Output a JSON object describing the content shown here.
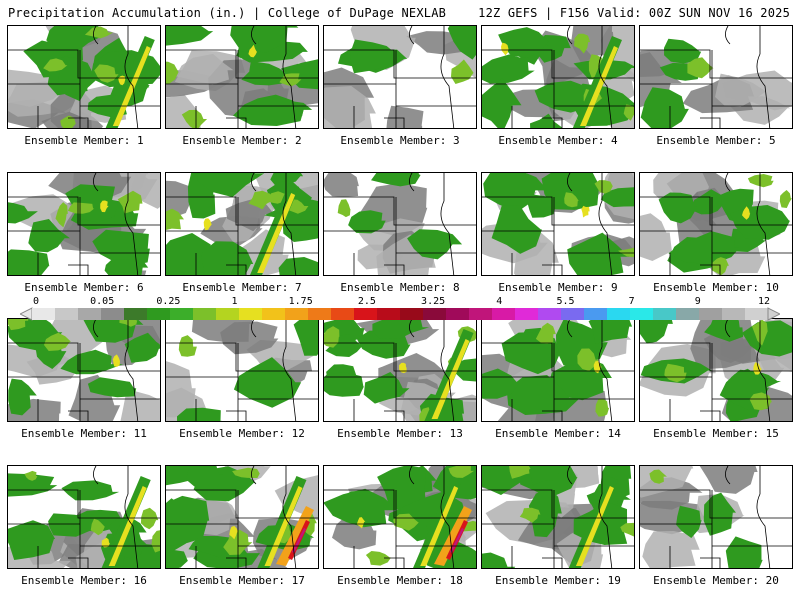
{
  "header": {
    "title_left": "Precipitation Accumulation (in.) | College of DuPage NEXLAB",
    "title_right": "12Z GEFS | F156 Valid: 00Z SUN NOV 16 2025"
  },
  "panel_label_prefix": "Ensemble Member: ",
  "colors": {
    "green": "#2f9a1f",
    "lightgreen": "#7cc02a",
    "yellow": "#e6e020",
    "orange": "#f2a21a",
    "red": "#d8141a",
    "magenta": "#c0157a",
    "gray": "#b0b0b0",
    "darkgray": "#7d7d7d",
    "border": "#000000"
  },
  "colorbar": {
    "labels": [
      "0",
      "0.05",
      "0.25",
      "1",
      "1.75",
      "2.5",
      "3.25",
      "4",
      "5.5",
      "7",
      "9",
      "12"
    ],
    "swatches": [
      "#e8e8e8",
      "#c8c8c8",
      "#a8a8a8",
      "#8c8c8c",
      "#3c7a2a",
      "#2f9a1f",
      "#3cae2a",
      "#7cc02a",
      "#b4d420",
      "#e6e020",
      "#f2c21a",
      "#f2a21a",
      "#ee7a18",
      "#e84a16",
      "#d8141a",
      "#b80c1a",
      "#980a1a",
      "#8a0a3a",
      "#a00a5a",
      "#c0157a",
      "#d81aa6",
      "#e02ad8",
      "#b04af0",
      "#7a6af0",
      "#4a9af0",
      "#2ad8f0",
      "#2ae8e8",
      "#48c8c8",
      "#88a8a8",
      "#a0a0a0",
      "#b8b8b8",
      "#d0d0d0"
    ]
  },
  "members": [
    {
      "id": "1",
      "profile": "wet"
    },
    {
      "id": "2",
      "profile": "mid"
    },
    {
      "id": "3",
      "profile": "dry"
    },
    {
      "id": "4",
      "profile": "band"
    },
    {
      "id": "5",
      "profile": "dry"
    },
    {
      "id": "6",
      "profile": "mid"
    },
    {
      "id": "7",
      "profile": "band"
    },
    {
      "id": "8",
      "profile": "dry"
    },
    {
      "id": "9",
      "profile": "mid"
    },
    {
      "id": "10",
      "profile": "mid"
    },
    {
      "id": "11",
      "profile": "mid"
    },
    {
      "id": "12",
      "profile": "dry"
    },
    {
      "id": "13",
      "profile": "band"
    },
    {
      "id": "14",
      "profile": "mid"
    },
    {
      "id": "15",
      "profile": "mid"
    },
    {
      "id": "16",
      "profile": "wet"
    },
    {
      "id": "17",
      "profile": "heavy"
    },
    {
      "id": "18",
      "profile": "heavy"
    },
    {
      "id": "19",
      "profile": "band"
    },
    {
      "id": "20",
      "profile": "dry"
    }
  ]
}
